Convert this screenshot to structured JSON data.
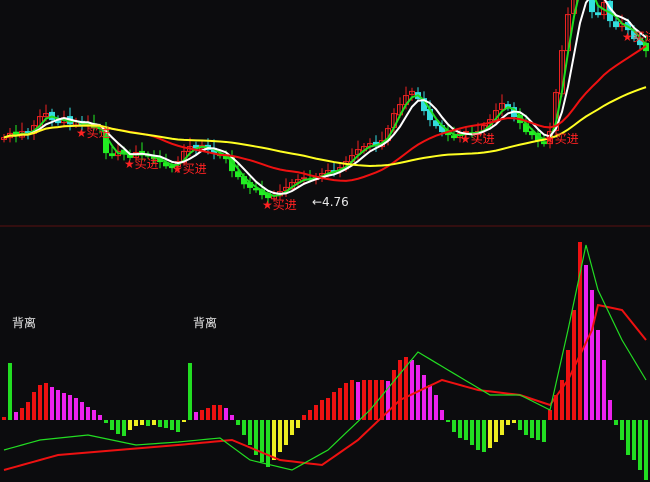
{
  "chart_data": [
    {
      "type": "candlestick",
      "panel": "price",
      "closes": [
        5.85,
        5.92,
        5.88,
        5.95,
        5.9,
        6.05,
        6.2,
        6.25,
        6.15,
        6.1,
        6.18,
        6.08,
        6.12,
        6.05,
        6.1,
        6.02,
        6.0,
        5.6,
        5.55,
        5.62,
        5.58,
        5.52,
        5.6,
        5.58,
        5.55,
        5.5,
        5.45,
        5.38,
        5.35,
        5.45,
        5.62,
        5.7,
        5.68,
        5.72,
        5.65,
        5.6,
        5.55,
        5.5,
        5.3,
        5.2,
        5.08,
        5.02,
        4.98,
        4.9,
        4.85,
        4.88,
        4.95,
        5.02,
        5.1,
        5.15,
        5.18,
        5.15,
        5.2,
        5.25,
        5.3,
        5.28,
        5.35,
        5.45,
        5.55,
        5.65,
        5.7,
        5.75,
        5.72,
        5.8,
        6.0,
        6.25,
        6.4,
        6.55,
        6.62,
        6.5,
        6.3,
        6.15,
        6.05,
        5.95,
        5.9,
        5.85,
        5.92,
        5.95,
        5.9,
        5.95,
        6.05,
        6.15,
        6.3,
        6.42,
        6.35,
        6.2,
        6.1,
        5.95,
        5.9,
        5.8,
        5.75,
        5.95,
        6.6,
        7.3,
        7.9,
        8.4,
        8.6,
        8.3,
        7.95,
        7.9,
        8.1,
        7.8,
        7.7,
        7.75,
        7.65,
        7.5,
        7.4,
        7.3
      ],
      "moving_averages": [
        {
          "period": 3,
          "color": "#22dd22"
        },
        {
          "period": 5,
          "color": "#ffffff"
        },
        {
          "period": 20,
          "color": "#ee1111"
        },
        {
          "period": 45,
          "color": "#ffff22"
        }
      ],
      "buy_signals": {
        "label": "★买进",
        "bars": [
          13,
          21,
          29,
          44,
          77,
          91,
          104
        ]
      },
      "low_annotation": {
        "text": "←4.76",
        "bar": 44,
        "price": 4.76
      },
      "colors": {
        "up": "#ee2222",
        "down": "#33dddd",
        "down_strong": "#22ee22",
        "signal": "#ff2222"
      }
    },
    {
      "type": "bar",
      "panel": "macd",
      "histogram": [
        0.03,
        0.57,
        0.08,
        0.12,
        0.18,
        0.28,
        0.35,
        0.37,
        0.33,
        0.3,
        0.27,
        0.25,
        0.22,
        0.18,
        0.13,
        0.1,
        0.05,
        -0.03,
        -0.1,
        -0.14,
        -0.16,
        -0.1,
        -0.06,
        -0.05,
        -0.06,
        -0.05,
        -0.07,
        -0.08,
        -0.1,
        -0.12,
        -0.02,
        0.57,
        0.08,
        0.1,
        0.12,
        0.15,
        0.15,
        0.12,
        0.05,
        -0.05,
        -0.15,
        -0.25,
        -0.35,
        -0.42,
        -0.47,
        -0.4,
        -0.32,
        -0.25,
        -0.15,
        -0.08,
        0.05,
        0.1,
        0.15,
        0.2,
        0.22,
        0.28,
        0.32,
        0.37,
        0.4,
        0.38,
        0.4,
        0.4,
        0.4,
        0.4,
        0.39,
        0.5,
        0.6,
        0.63,
        0.6,
        0.55,
        0.45,
        0.35,
        0.25,
        0.1,
        -0.02,
        -0.12,
        -0.18,
        -0.2,
        -0.25,
        -0.3,
        -0.32,
        -0.28,
        -0.22,
        -0.15,
        -0.05,
        -0.03,
        -0.1,
        -0.15,
        -0.18,
        -0.2,
        -0.22,
        0.1,
        0.25,
        0.4,
        0.7,
        1.1,
        1.78,
        1.55,
        1.3,
        0.9,
        0.6,
        0.2,
        -0.05,
        -0.2,
        -0.35,
        -0.4,
        -0.5,
        -0.6
      ],
      "divergence_bars": [
        1,
        31
      ],
      "divergence_label": "背离",
      "dif": [
        [
          0,
          -0.3
        ],
        [
          6,
          -0.2
        ],
        [
          14,
          -0.15
        ],
        [
          22,
          -0.25
        ],
        [
          29,
          -0.22
        ],
        [
          36,
          -0.18
        ],
        [
          41,
          -0.4
        ],
        [
          48,
          -0.5
        ],
        [
          54,
          -0.3
        ],
        [
          61,
          0.1
        ],
        [
          69,
          0.68
        ],
        [
          74,
          0.5
        ],
        [
          81,
          0.25
        ],
        [
          86,
          0.25
        ],
        [
          91,
          0.1
        ],
        [
          94,
          0.9
        ],
        [
          97,
          1.75
        ],
        [
          99,
          1.3
        ],
        [
          103,
          0.8
        ],
        [
          107,
          0.4
        ]
      ],
      "dea": [
        [
          0,
          -0.5
        ],
        [
          9,
          -0.35
        ],
        [
          19,
          -0.3
        ],
        [
          29,
          -0.25
        ],
        [
          38,
          -0.2
        ],
        [
          46,
          -0.4
        ],
        [
          53,
          -0.45
        ],
        [
          59,
          -0.2
        ],
        [
          66,
          0.2
        ],
        [
          73,
          0.4
        ],
        [
          79,
          0.3
        ],
        [
          86,
          0.25
        ],
        [
          91,
          0.15
        ],
        [
          94,
          0.4
        ],
        [
          98,
          0.9
        ],
        [
          99,
          1.15
        ],
        [
          103,
          1.1
        ],
        [
          107,
          0.8
        ]
      ],
      "colors": {
        "rise_pos": "#ee1111",
        "fall_pos": "#ee22ee",
        "fall_neg": "#22dd22",
        "rise_neg": "#eeee22",
        "dif": "#22dd22",
        "dea": "#ee1111"
      }
    }
  ]
}
